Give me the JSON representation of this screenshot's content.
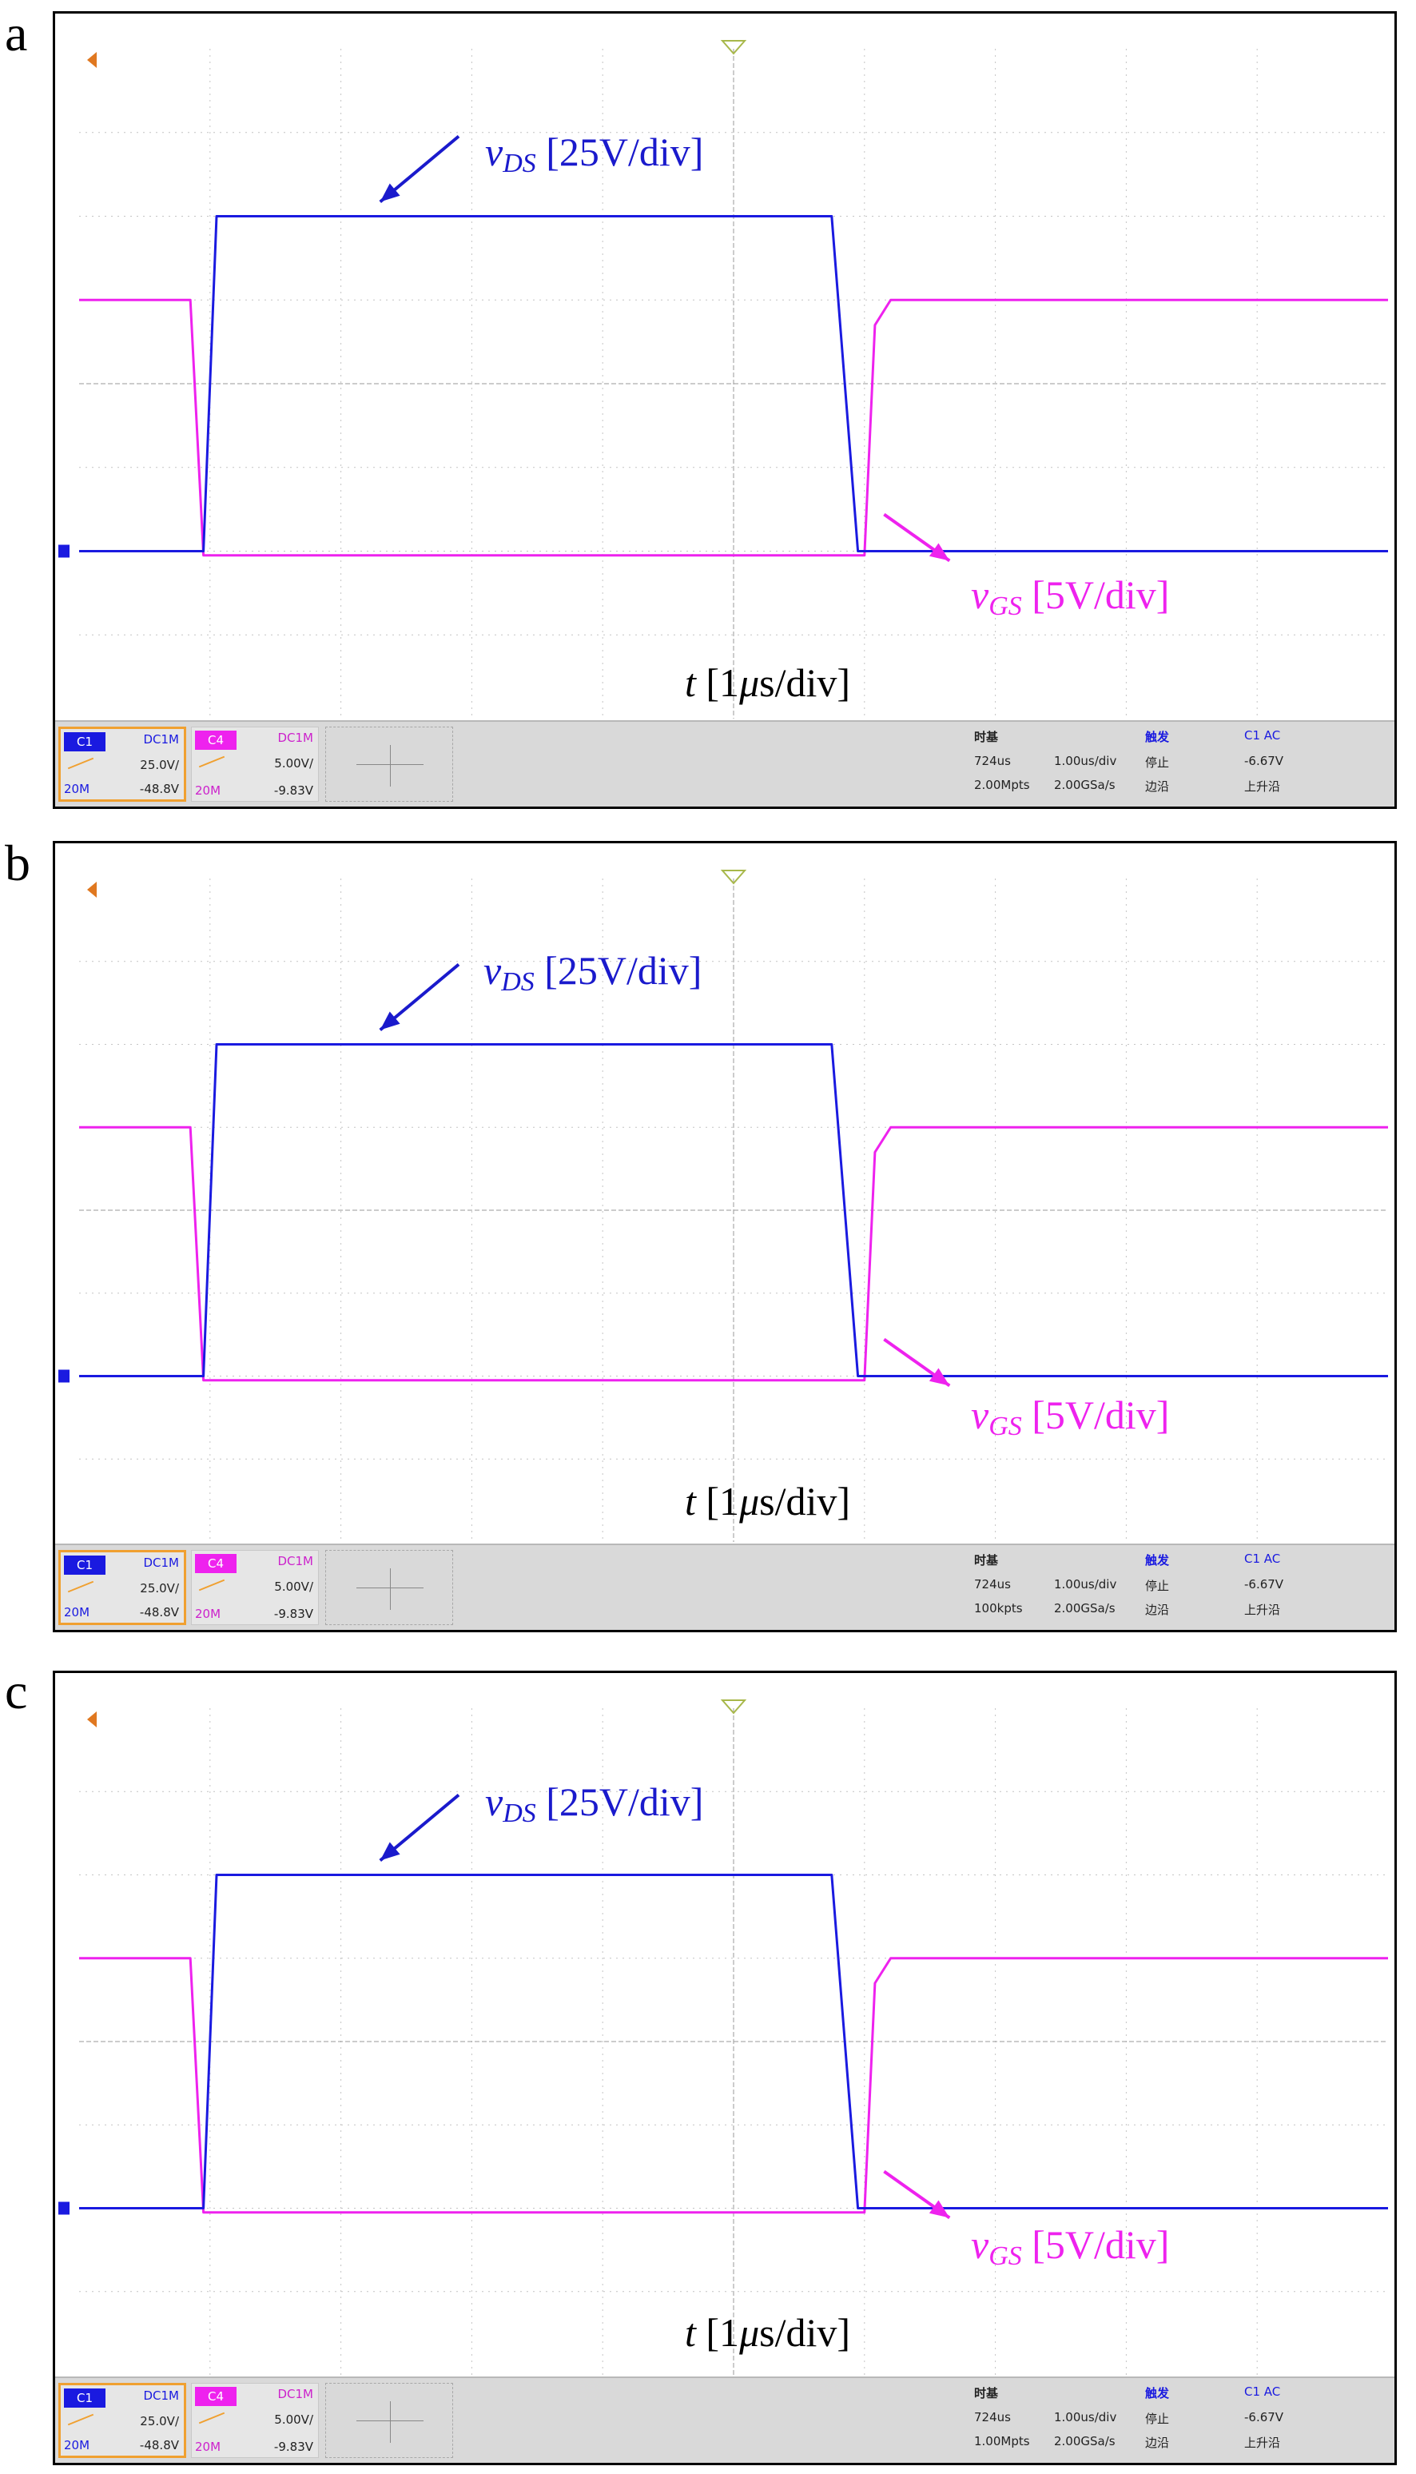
{
  "chart_data": [
    {
      "type": "line",
      "panel": "a",
      "annotations": {
        "vds_symbol": "v",
        "vds_sub": "DS",
        "vds_scale": " [25V/div]",
        "vgs_symbol": "v",
        "vgs_sub": "GS",
        "vgs_scale": " [5V/div]",
        "time_symbol": "t",
        "time_scale_pre": " [1",
        "time_mu": "μ",
        "time_scale_post": "s/div]"
      },
      "grid": true,
      "divisions": {
        "x": 10,
        "y": 8
      },
      "xlim_us": [
        0,
        10
      ],
      "series": [
        {
          "channel": "C1",
          "color": "#1a1ae0",
          "x_us": [
            0,
            0.95,
            1.05,
            5.75,
            5.95,
            10
          ],
          "y_div": [
            0,
            0,
            4,
            4,
            0,
            0
          ]
        },
        {
          "channel": "C4",
          "color": "#ee22ee",
          "x_us": [
            0,
            0.85,
            0.95,
            6.0,
            6.08,
            6.2,
            10
          ],
          "y_div": [
            3,
            3,
            -0.05,
            -0.05,
            2.7,
            3,
            3
          ]
        }
      ],
      "status_bar": {
        "c1": {
          "tag": "C1",
          "coupling": "DC1M",
          "scale": "25.0V/",
          "bw": "20M",
          "offset": "-48.8V"
        },
        "c4": {
          "tag": "C4",
          "coupling": "DC1M",
          "scale": "5.00V/",
          "bw": "20M",
          "offset": "-9.83V"
        },
        "timebase": {
          "title": "时基",
          "delay": "724us",
          "scale": "1.00us/div",
          "depth": "2.00Mpts",
          "rate": "2.00GSa/s"
        },
        "trigger": {
          "title": "触发",
          "state": "停止",
          "edge": "边沿",
          "source": "C1 AC",
          "level": "-6.67V",
          "slope": "上升沿"
        }
      },
      "colors": {
        "vds": "#1a1acc",
        "vgs": "#ee22ee",
        "marker": "#e07820"
      }
    },
    {
      "type": "line",
      "panel": "b",
      "annotations": {
        "vds_symbol": "v",
        "vds_sub": "DS",
        "vds_scale": " [25V/div]",
        "vgs_symbol": "v",
        "vgs_sub": "GS",
        "vgs_scale": " [5V/div]",
        "time_symbol": "t",
        "time_scale_pre": " [1",
        "time_mu": "μ",
        "time_scale_post": "s/div]"
      },
      "grid": true,
      "divisions": {
        "x": 10,
        "y": 8
      },
      "xlim_us": [
        0,
        10
      ],
      "series": [
        {
          "channel": "C1",
          "color": "#1a1ae0",
          "x_us": [
            0,
            0.95,
            1.05,
            5.75,
            5.95,
            10
          ],
          "y_div": [
            0,
            0,
            4,
            4,
            0,
            0
          ]
        },
        {
          "channel": "C4",
          "color": "#ee22ee",
          "x_us": [
            0,
            0.85,
            0.95,
            6.0,
            6.08,
            6.2,
            10
          ],
          "y_div": [
            3,
            3,
            -0.05,
            -0.05,
            2.7,
            3,
            3
          ]
        }
      ],
      "status_bar": {
        "c1": {
          "tag": "C1",
          "coupling": "DC1M",
          "scale": "25.0V/",
          "bw": "20M",
          "offset": "-48.8V"
        },
        "c4": {
          "tag": "C4",
          "coupling": "DC1M",
          "scale": "5.00V/",
          "bw": "20M",
          "offset": "-9.83V"
        },
        "timebase": {
          "title": "时基",
          "delay": "724us",
          "scale": "1.00us/div",
          "depth": "100kpts",
          "rate": "2.00GSa/s"
        },
        "trigger": {
          "title": "触发",
          "state": "停止",
          "edge": "边沿",
          "source": "C1 AC",
          "level": "-6.67V",
          "slope": "上升沿"
        }
      },
      "colors": {
        "vds": "#1a1acc",
        "vgs": "#ee22ee",
        "marker": "#e07820"
      }
    },
    {
      "type": "line",
      "panel": "c",
      "annotations": {
        "vds_symbol": "v",
        "vds_sub": "DS",
        "vds_scale": " [25V/div]",
        "vgs_symbol": "v",
        "vgs_sub": "GS",
        "vgs_scale": " [5V/div]",
        "time_symbol": "t",
        "time_scale_pre": " [1",
        "time_mu": "μ",
        "time_scale_post": "s/div]"
      },
      "grid": true,
      "divisions": {
        "x": 10,
        "y": 8
      },
      "xlim_us": [
        0,
        10
      ],
      "series": [
        {
          "channel": "C1",
          "color": "#1a1ae0",
          "x_us": [
            0,
            0.95,
            1.05,
            5.75,
            5.95,
            10
          ],
          "y_div": [
            0,
            0,
            4,
            4,
            0,
            0
          ]
        },
        {
          "channel": "C4",
          "color": "#ee22ee",
          "x_us": [
            0,
            0.85,
            0.95,
            6.0,
            6.08,
            6.2,
            10
          ],
          "y_div": [
            3,
            3,
            -0.05,
            -0.05,
            2.7,
            3,
            3
          ]
        }
      ],
      "status_bar": {
        "c1": {
          "tag": "C1",
          "coupling": "DC1M",
          "scale": "25.0V/",
          "bw": "20M",
          "offset": "-48.8V"
        },
        "c4": {
          "tag": "C4",
          "coupling": "DC1M",
          "scale": "5.00V/",
          "bw": "20M",
          "offset": "-9.83V"
        },
        "timebase": {
          "title": "时基",
          "delay": "724us",
          "scale": "1.00us/div",
          "depth": "1.00Mpts",
          "rate": "2.00GSa/s"
        },
        "trigger": {
          "title": "触发",
          "state": "停止",
          "edge": "边沿",
          "source": "C1 AC",
          "level": "-6.67V",
          "slope": "上升沿"
        }
      },
      "colors": {
        "vds": "#1a1acc",
        "vgs": "#ee22ee",
        "marker": "#e07820"
      }
    }
  ],
  "panels": [
    {
      "letter": "a"
    },
    {
      "letter": "b"
    },
    {
      "letter": "c"
    }
  ]
}
